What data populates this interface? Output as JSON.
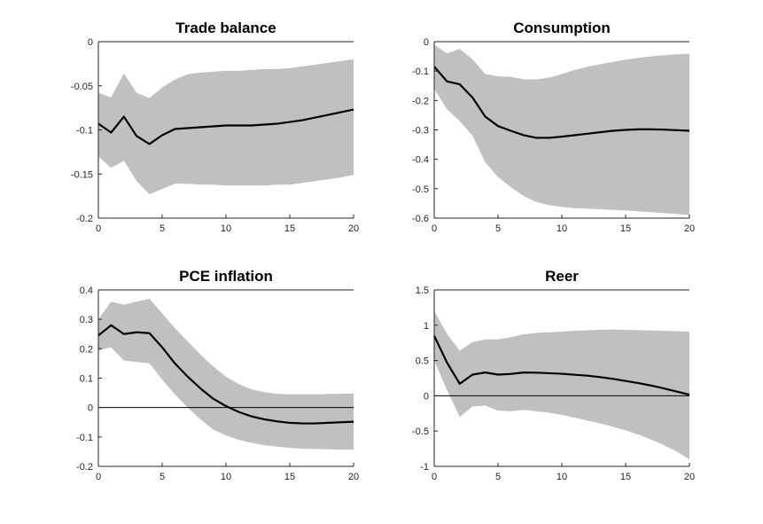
{
  "chart_data": [
    {
      "type": "line",
      "title": "Trade balance",
      "xlabel": "",
      "ylabel": "",
      "xlim": [
        0,
        20
      ],
      "ylim": [
        -0.2,
        0
      ],
      "xticks": [
        "0",
        "5",
        "10",
        "15",
        "20"
      ],
      "yticks": [
        "0",
        "-0.05",
        "-0.1",
        "-0.15",
        "-0.2"
      ],
      "grid": false,
      "zero_line": false,
      "band_color": "#c0c0c0",
      "line_color": "#000000",
      "x": [
        0,
        1,
        2,
        3,
        4,
        5,
        6,
        7,
        8,
        9,
        10,
        11,
        12,
        13,
        14,
        15,
        16,
        17,
        18,
        19,
        20
      ],
      "median": [
        -0.093,
        -0.103,
        -0.085,
        -0.107,
        -0.116,
        -0.106,
        -0.099,
        -0.098,
        -0.097,
        -0.096,
        -0.095,
        -0.095,
        -0.095,
        -0.094,
        -0.093,
        -0.091,
        -0.089,
        -0.086,
        -0.083,
        -0.08,
        -0.077
      ],
      "upper": [
        -0.058,
        -0.063,
        -0.036,
        -0.058,
        -0.064,
        -0.052,
        -0.043,
        -0.037,
        -0.035,
        -0.034,
        -0.033,
        -0.033,
        -0.032,
        -0.031,
        -0.031,
        -0.03,
        -0.028,
        -0.026,
        -0.024,
        -0.022,
        -0.02
      ],
      "lower": [
        -0.13,
        -0.143,
        -0.135,
        -0.158,
        -0.173,
        -0.167,
        -0.161,
        -0.161,
        -0.162,
        -0.162,
        -0.163,
        -0.163,
        -0.163,
        -0.163,
        -0.162,
        -0.162,
        -0.16,
        -0.158,
        -0.156,
        -0.154,
        -0.151
      ]
    },
    {
      "type": "line",
      "title": "Consumption",
      "xlabel": "",
      "ylabel": "",
      "xlim": [
        0,
        20
      ],
      "ylim": [
        -0.6,
        0
      ],
      "xticks": [
        "0",
        "5",
        "10",
        "15",
        "20"
      ],
      "yticks": [
        "0",
        "-0.1",
        "-0.2",
        "-0.3",
        "-0.4",
        "-0.5",
        "-0.6"
      ],
      "grid": false,
      "zero_line": false,
      "band_color": "#c0c0c0",
      "line_color": "#000000",
      "x": [
        0,
        1,
        2,
        3,
        4,
        5,
        6,
        7,
        8,
        9,
        10,
        11,
        12,
        13,
        14,
        15,
        16,
        17,
        18,
        19,
        20
      ],
      "median": [
        -0.085,
        -0.135,
        -0.145,
        -0.19,
        -0.255,
        -0.287,
        -0.303,
        -0.318,
        -0.327,
        -0.327,
        -0.323,
        -0.318,
        -0.313,
        -0.308,
        -0.303,
        -0.3,
        -0.298,
        -0.298,
        -0.299,
        -0.301,
        -0.303
      ],
      "upper": [
        -0.01,
        -0.04,
        -0.025,
        -0.06,
        -0.11,
        -0.118,
        -0.12,
        -0.128,
        -0.128,
        -0.122,
        -0.11,
        -0.096,
        -0.085,
        -0.077,
        -0.069,
        -0.061,
        -0.055,
        -0.05,
        -0.046,
        -0.043,
        -0.041
      ],
      "lower": [
        -0.16,
        -0.23,
        -0.27,
        -0.32,
        -0.41,
        -0.46,
        -0.495,
        -0.525,
        -0.545,
        -0.556,
        -0.562,
        -0.566,
        -0.568,
        -0.57,
        -0.572,
        -0.574,
        -0.577,
        -0.58,
        -0.583,
        -0.586,
        -0.59
      ]
    },
    {
      "type": "line",
      "title": "PCE inflation",
      "xlabel": "",
      "ylabel": "",
      "xlim": [
        0,
        20
      ],
      "ylim": [
        -0.2,
        0.4
      ],
      "xticks": [
        "0",
        "5",
        "10",
        "15",
        "20"
      ],
      "yticks": [
        "0.4",
        "0.3",
        "0.2",
        "0.1",
        "0",
        "-0.1",
        "-0.2"
      ],
      "grid": false,
      "zero_line": true,
      "band_color": "#c0c0c0",
      "line_color": "#000000",
      "x": [
        0,
        1,
        2,
        3,
        4,
        5,
        6,
        7,
        8,
        9,
        10,
        11,
        12,
        13,
        14,
        15,
        16,
        17,
        18,
        19,
        20
      ],
      "median": [
        0.245,
        0.28,
        0.25,
        0.256,
        0.253,
        0.205,
        0.15,
        0.105,
        0.065,
        0.03,
        0.005,
        -0.015,
        -0.03,
        -0.04,
        -0.047,
        -0.052,
        -0.054,
        -0.054,
        -0.052,
        -0.05,
        -0.048
      ],
      "upper": [
        0.3,
        0.36,
        0.35,
        0.36,
        0.37,
        0.32,
        0.27,
        0.225,
        0.18,
        0.14,
        0.105,
        0.08,
        0.062,
        0.052,
        0.047,
        0.045,
        0.045,
        0.045,
        0.046,
        0.047,
        0.048
      ],
      "lower": [
        0.195,
        0.205,
        0.16,
        0.155,
        0.15,
        0.095,
        0.045,
        0.0,
        -0.04,
        -0.075,
        -0.095,
        -0.11,
        -0.12,
        -0.128,
        -0.133,
        -0.137,
        -0.14,
        -0.141,
        -0.142,
        -0.143,
        -0.143
      ]
    },
    {
      "type": "line",
      "title": "Reer",
      "xlabel": "",
      "ylabel": "",
      "xlim": [
        0,
        20
      ],
      "ylim": [
        -1,
        1.5
      ],
      "xticks": [
        "0",
        "5",
        "10",
        "15",
        "20"
      ],
      "yticks": [
        "1.5",
        "1",
        "0.5",
        "0",
        "-0.5",
        "-1"
      ],
      "grid": false,
      "zero_line": true,
      "band_color": "#c0c0c0",
      "line_color": "#000000",
      "x": [
        0,
        1,
        2,
        3,
        4,
        5,
        6,
        7,
        8,
        9,
        10,
        11,
        12,
        13,
        14,
        15,
        16,
        17,
        18,
        19,
        20
      ],
      "median": [
        0.85,
        0.47,
        0.17,
        0.3,
        0.33,
        0.3,
        0.31,
        0.33,
        0.328,
        0.32,
        0.312,
        0.298,
        0.285,
        0.265,
        0.24,
        0.21,
        0.18,
        0.145,
        0.105,
        0.06,
        0.015
      ],
      "upper": [
        1.2,
        0.88,
        0.64,
        0.76,
        0.8,
        0.8,
        0.83,
        0.87,
        0.89,
        0.9,
        0.91,
        0.92,
        0.93,
        0.935,
        0.94,
        0.935,
        0.93,
        0.925,
        0.92,
        0.915,
        0.91
      ],
      "lower": [
        0.5,
        0.08,
        -0.3,
        -0.15,
        -0.14,
        -0.21,
        -0.22,
        -0.2,
        -0.22,
        -0.24,
        -0.27,
        -0.31,
        -0.35,
        -0.39,
        -0.44,
        -0.49,
        -0.55,
        -0.62,
        -0.7,
        -0.79,
        -0.9
      ]
    }
  ]
}
